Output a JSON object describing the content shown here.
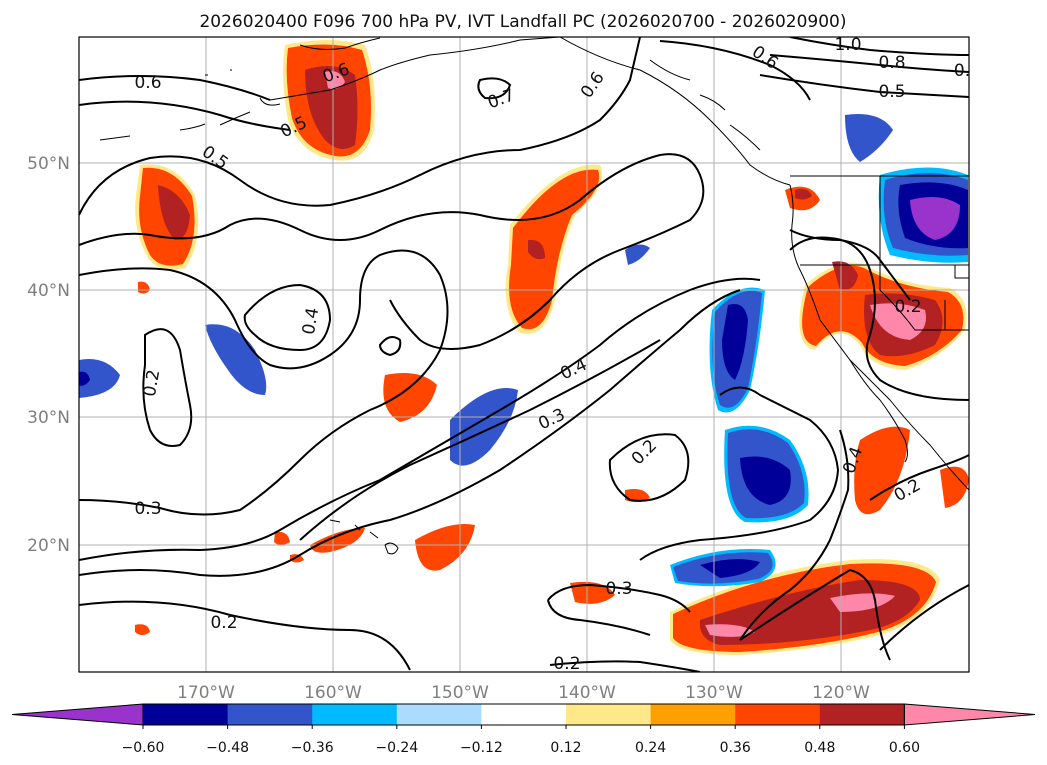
{
  "title": "2026020400 F096 700 hPa PV, IVT Landfall PC (2026020700 - 2026020900)",
  "lon_ticks": [
    "170°W",
    "160°W",
    "150°W",
    "140°W",
    "130°W",
    "120°W"
  ],
  "lat_ticks": [
    "50°N",
    "40°N",
    "30°N",
    "20°N"
  ],
  "colorbar": {
    "levels": [
      "−0.60",
      "−0.48",
      "−0.36",
      "−0.24",
      "−0.12",
      "0.12",
      "0.24",
      "0.36",
      "0.48",
      "0.60"
    ],
    "colors": [
      "#9933cc",
      "#000099",
      "#3355cc",
      "#00bbff",
      "#aaddff",
      "#ffffff",
      "#ffe88a",
      "#ffa000",
      "#ff4500",
      "#b22222",
      "#ff88aa"
    ]
  },
  "contour_labels": [
    "0.6",
    "0.6",
    "0.7",
    "0.6",
    "0.6",
    "1.0",
    "0.8",
    "0.",
    "0.5",
    "0.5",
    "0.5",
    "0.4",
    "0.2",
    "0.4",
    "0.3",
    "0.2",
    "0.3",
    "0.4",
    "0.2",
    "0.2",
    "0.2",
    "0.3",
    "0.2"
  ],
  "fill_colors": {
    "neg_lo": "#aaddff",
    "neg_mid": "#00bbff",
    "neg_strong": "#3355cc",
    "neg_deep": "#000099",
    "neg_extreme": "#9933cc",
    "pos_lo": "#ffe88a",
    "pos_mid": "#ffa000",
    "pos_strong": "#ff4500",
    "pos_deep": "#b22222",
    "pos_extreme": "#ff88aa"
  }
}
